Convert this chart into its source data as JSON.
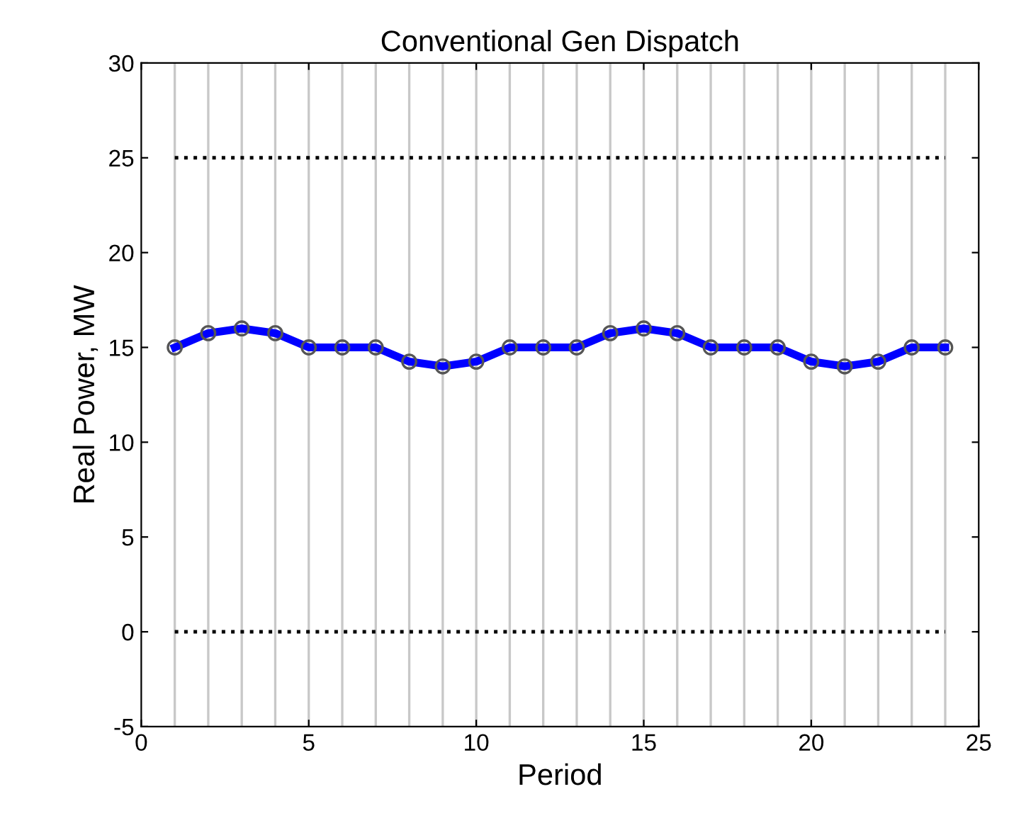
{
  "chart_data": {
    "type": "line",
    "title": "Conventional Gen Dispatch",
    "xlabel": "Period",
    "ylabel": "Real Power, MW",
    "x": [
      1,
      2,
      3,
      4,
      5,
      6,
      7,
      8,
      9,
      10,
      11,
      12,
      13,
      14,
      15,
      16,
      17,
      18,
      19,
      20,
      21,
      22,
      23,
      24
    ],
    "series": [
      {
        "color": "#0000ff",
        "marker": "circle",
        "line_style": "solid",
        "values": [
          15,
          15.75,
          16,
          15.75,
          15,
          15,
          15,
          14.25,
          14,
          14.25,
          15,
          15,
          15,
          15.75,
          16,
          15.75,
          15,
          15,
          15,
          14.25,
          14,
          14.25,
          15,
          15
        ]
      },
      {
        "color": "#000000",
        "marker": "none",
        "line_style": "dotted",
        "values": [
          25,
          25,
          25,
          25,
          25,
          25,
          25,
          25,
          25,
          25,
          25,
          25,
          25,
          25,
          25,
          25,
          25,
          25,
          25,
          25,
          25,
          25,
          25,
          25
        ]
      },
      {
        "color": "#000000",
        "marker": "none",
        "line_style": "dotted",
        "values": [
          0,
          0,
          0,
          0,
          0,
          0,
          0,
          0,
          0,
          0,
          0,
          0,
          0,
          0,
          0,
          0,
          0,
          0,
          0,
          0,
          0,
          0,
          0,
          0
        ]
      }
    ],
    "ref_lines": [
      {
        "axis": "x",
        "value": 1,
        "color": "#c8c8c8"
      },
      {
        "axis": "x",
        "value": 2,
        "color": "#c8c8c8"
      },
      {
        "axis": "x",
        "value": 3,
        "color": "#c8c8c8"
      },
      {
        "axis": "x",
        "value": 4,
        "color": "#c8c8c8"
      },
      {
        "axis": "x",
        "value": 5,
        "color": "#c8c8c8"
      },
      {
        "axis": "x",
        "value": 6,
        "color": "#c8c8c8"
      },
      {
        "axis": "x",
        "value": 7,
        "color": "#c8c8c8"
      },
      {
        "axis": "x",
        "value": 8,
        "color": "#c8c8c8"
      },
      {
        "axis": "x",
        "value": 9,
        "color": "#c8c8c8"
      },
      {
        "axis": "x",
        "value": 10,
        "color": "#c8c8c8"
      },
      {
        "axis": "x",
        "value": 11,
        "color": "#c8c8c8"
      },
      {
        "axis": "x",
        "value": 12,
        "color": "#c8c8c8"
      },
      {
        "axis": "x",
        "value": 13,
        "color": "#c8c8c8"
      },
      {
        "axis": "x",
        "value": 14,
        "color": "#c8c8c8"
      },
      {
        "axis": "x",
        "value": 15,
        "color": "#c8c8c8"
      },
      {
        "axis": "x",
        "value": 16,
        "color": "#c8c8c8"
      },
      {
        "axis": "x",
        "value": 17,
        "color": "#c8c8c8"
      },
      {
        "axis": "x",
        "value": 18,
        "color": "#c8c8c8"
      },
      {
        "axis": "x",
        "value": 19,
        "color": "#c8c8c8"
      },
      {
        "axis": "x",
        "value": 20,
        "color": "#c8c8c8"
      },
      {
        "axis": "x",
        "value": 21,
        "color": "#c8c8c8"
      },
      {
        "axis": "x",
        "value": 22,
        "color": "#c8c8c8"
      },
      {
        "axis": "x",
        "value": 23,
        "color": "#c8c8c8"
      },
      {
        "axis": "x",
        "value": 24,
        "color": "#c8c8c8"
      }
    ],
    "xlim": [
      0,
      25
    ],
    "xticks": [
      0,
      5,
      10,
      15,
      20,
      25
    ],
    "ylim": [
      -5,
      30
    ],
    "yticks": [
      -5,
      0,
      5,
      10,
      15,
      20,
      25,
      30
    ],
    "grid": false,
    "legend": false
  }
}
